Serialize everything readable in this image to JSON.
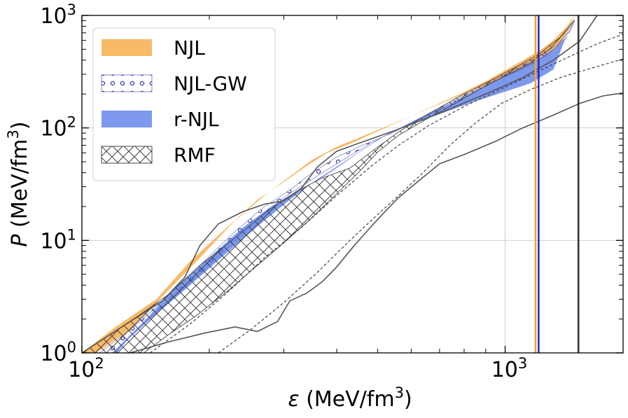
{
  "chart_data": {
    "type": "area",
    "title": "",
    "xlabel": {
      "symbol": "ε",
      "unit": "(MeV/fm",
      "sup": "3",
      "close": ")"
    },
    "ylabel": {
      "symbol": "P",
      "unit": "(MeV/fm",
      "sup": "3",
      "close": ")"
    },
    "xscale": "log",
    "yscale": "log",
    "xlim": [
      100,
      1900
    ],
    "ylim": [
      1,
      1000
    ],
    "grid": true,
    "legend_position": "upper-left",
    "x_ticks": [
      {
        "value": 100,
        "base": "10",
        "exp": "2"
      },
      {
        "value": 1000,
        "base": "10",
        "exp": "3"
      }
    ],
    "y_ticks": [
      {
        "value": 1,
        "base": "10",
        "exp": "0"
      },
      {
        "value": 10,
        "base": "10",
        "exp": "1"
      },
      {
        "value": 100,
        "base": "10",
        "exp": "2"
      },
      {
        "value": 1000,
        "base": "10",
        "exp": "3"
      }
    ],
    "series": [
      {
        "name": "NJL",
        "style": "filled-band",
        "color": "#f5a02c",
        "upper": [
          [
            100,
            1.0
          ],
          [
            120,
            1.7
          ],
          [
            150,
            3.0
          ],
          [
            180,
            6.5
          ],
          [
            220,
            13
          ],
          [
            260,
            23
          ],
          [
            300,
            33
          ],
          [
            340,
            46
          ],
          [
            380,
            60
          ],
          [
            440,
            75
          ],
          [
            520,
            100
          ],
          [
            620,
            135
          ],
          [
            760,
            190
          ],
          [
            900,
            260
          ],
          [
            1050,
            360
          ],
          [
            1200,
            480
          ],
          [
            1300,
            600
          ],
          [
            1400,
            800
          ],
          [
            1460,
            1000
          ]
        ],
        "lower": [
          [
            1460,
            1000
          ],
          [
            1420,
            780
          ],
          [
            1350,
            560
          ],
          [
            1250,
            430
          ],
          [
            1100,
            330
          ],
          [
            950,
            260
          ],
          [
            800,
            200
          ],
          [
            650,
            145
          ],
          [
            540,
            108
          ],
          [
            460,
            84
          ],
          [
            400,
            68
          ],
          [
            350,
            52
          ],
          [
            310,
            37
          ],
          [
            270,
            25
          ],
          [
            230,
            15
          ],
          [
            190,
            7
          ],
          [
            160,
            3.6
          ],
          [
            130,
            1.6
          ],
          [
            108,
            1.0
          ]
        ]
      },
      {
        "name": "NJL-GW",
        "style": "dotted-band",
        "color": "#3a3aa8",
        "upper": [
          [
            110,
            1.0
          ],
          [
            130,
            1.6
          ],
          [
            160,
            3.2
          ],
          [
            190,
            6
          ],
          [
            230,
            12
          ],
          [
            270,
            20
          ],
          [
            310,
            28
          ],
          [
            350,
            40
          ],
          [
            400,
            55
          ],
          [
            460,
            70
          ],
          [
            540,
            90
          ],
          [
            640,
            125
          ],
          [
            760,
            175
          ],
          [
            900,
            240
          ],
          [
            1050,
            330
          ],
          [
            1200,
            430
          ],
          [
            1320,
            540
          ],
          [
            1420,
            720
          ],
          [
            1460,
            900
          ]
        ],
        "lower": [
          [
            1460,
            900
          ],
          [
            1400,
            690
          ],
          [
            1320,
            520
          ],
          [
            1200,
            400
          ],
          [
            1050,
            310
          ],
          [
            900,
            240
          ],
          [
            760,
            170
          ],
          [
            640,
            124
          ],
          [
            540,
            92
          ],
          [
            460,
            66
          ],
          [
            400,
            48
          ],
          [
            350,
            35
          ],
          [
            300,
            24
          ],
          [
            260,
            15
          ],
          [
            220,
            8.5
          ],
          [
            180,
            4.2
          ],
          [
            150,
            2.3
          ],
          [
            130,
            1.4
          ],
          [
            118,
            1.0
          ]
        ]
      },
      {
        "name": "r-NJL",
        "style": "filled-band",
        "color": "#4a72e8",
        "upper": [
          [
            118,
            1.0
          ],
          [
            140,
            1.9
          ],
          [
            165,
            3.7
          ],
          [
            200,
            7
          ],
          [
            240,
            13
          ],
          [
            280,
            20
          ],
          [
            320,
            27
          ],
          [
            360,
            34
          ],
          [
            400,
            44
          ],
          [
            450,
            60
          ],
          [
            520,
            85
          ],
          [
            620,
            120
          ],
          [
            760,
            170
          ],
          [
            900,
            235
          ],
          [
            1050,
            320
          ],
          [
            1200,
            410
          ],
          [
            1320,
            520
          ],
          [
            1420,
            700
          ],
          [
            1460,
            860
          ]
        ],
        "lower": [
          [
            1460,
            860
          ],
          [
            1380,
            590
          ],
          [
            1300,
            330
          ],
          [
            1150,
            250
          ],
          [
            1000,
            210
          ],
          [
            850,
            172
          ],
          [
            720,
            138
          ],
          [
            600,
            108
          ],
          [
            520,
            85
          ],
          [
            460,
            64
          ],
          [
            410,
            48
          ],
          [
            360,
            35
          ],
          [
            310,
            23
          ],
          [
            270,
            15
          ],
          [
            230,
            9
          ],
          [
            195,
            5.2
          ],
          [
            165,
            3.0
          ],
          [
            145,
            2.0
          ],
          [
            128,
            1.3
          ],
          [
            121,
            1.0
          ]
        ]
      },
      {
        "name": "RMF",
        "style": "crosshatch-band",
        "color": "#444444",
        "upper": [
          [
            100,
            1.0
          ],
          [
            115,
            1.4
          ],
          [
            135,
            2.1
          ],
          [
            160,
            3.3
          ],
          [
            190,
            6
          ],
          [
            230,
            10.5
          ],
          [
            270,
            17.5
          ],
          [
            320,
            27
          ],
          [
            370,
            36
          ],
          [
            430,
            44
          ],
          [
            490,
            64
          ],
          [
            560,
            92
          ],
          [
            650,
            130
          ],
          [
            770,
            185
          ],
          [
            900,
            250
          ],
          [
            1050,
            340
          ],
          [
            1200,
            450
          ],
          [
            1350,
            640
          ],
          [
            1460,
            910
          ]
        ],
        "lower": [
          [
            1460,
            910
          ],
          [
            1380,
            700
          ],
          [
            1280,
            510
          ],
          [
            1150,
            380
          ],
          [
            1000,
            290
          ],
          [
            860,
            215
          ],
          [
            740,
            155
          ],
          [
            640,
            115
          ],
          [
            560,
            86
          ],
          [
            500,
            61
          ],
          [
            450,
            40
          ],
          [
            400,
            26
          ],
          [
            350,
            16
          ],
          [
            300,
            9.5
          ],
          [
            260,
            6
          ],
          [
            220,
            3.5
          ],
          [
            185,
            2.1
          ],
          [
            160,
            1.45
          ],
          [
            140,
            1.0
          ]
        ]
      }
    ],
    "reference_lines": [
      {
        "style": "solid",
        "color": "#555555",
        "points": [
          [
            100,
            1.0
          ],
          [
            130,
            1.9
          ],
          [
            155,
            2.9
          ],
          [
            175,
            4.7
          ],
          [
            190,
            9
          ],
          [
            210,
            14
          ],
          [
            240,
            18
          ],
          [
            270,
            21
          ],
          [
            300,
            22.5
          ],
          [
            330,
            29
          ],
          [
            360,
            45
          ],
          [
            400,
            62
          ],
          [
            460,
            75
          ],
          [
            550,
            95
          ],
          [
            700,
            135
          ],
          [
            900,
            200
          ],
          [
            1100,
            280
          ],
          [
            1300,
            400
          ],
          [
            1500,
            590
          ],
          [
            1650,
            1000
          ]
        ]
      },
      {
        "style": "solid",
        "color": "#555555",
        "points": [
          [
            130,
            1.0
          ],
          [
            160,
            1.25
          ],
          [
            195,
            1.5
          ],
          [
            230,
            1.7
          ],
          [
            260,
            1.55
          ],
          [
            290,
            1.9
          ],
          [
            310,
            2.9
          ],
          [
            340,
            3.4
          ],
          [
            370,
            4.3
          ],
          [
            400,
            5.8
          ],
          [
            440,
            9
          ],
          [
            480,
            13
          ],
          [
            520,
            18
          ],
          [
            560,
            24
          ],
          [
            620,
            33
          ],
          [
            700,
            48
          ],
          [
            800,
            58
          ],
          [
            950,
            76
          ],
          [
            1100,
            100
          ],
          [
            1300,
            130
          ],
          [
            1500,
            165
          ],
          [
            1700,
            192
          ],
          [
            1900,
            205
          ]
        ]
      },
      {
        "style": "dashed",
        "color": "#333333",
        "points": [
          [
            145,
            1.0
          ],
          [
            180,
            1.8
          ],
          [
            220,
            3.4
          ],
          [
            270,
            7
          ],
          [
            330,
            13
          ],
          [
            400,
            25
          ],
          [
            480,
            45
          ],
          [
            560,
            70
          ],
          [
            660,
            105
          ],
          [
            800,
            155
          ],
          [
            1000,
            230
          ],
          [
            1200,
            320
          ],
          [
            1400,
            420
          ],
          [
            1650,
            560
          ],
          [
            1900,
            680
          ]
        ]
      },
      {
        "style": "dashed",
        "color": "#333333",
        "points": [
          [
            210,
            1.0
          ],
          [
            250,
            1.6
          ],
          [
            300,
            2.8
          ],
          [
            360,
            5.2
          ],
          [
            430,
            10
          ],
          [
            500,
            17
          ],
          [
            560,
            25
          ],
          [
            640,
            40
          ],
          [
            740,
            70
          ],
          [
            850,
            110
          ],
          [
            980,
            165
          ],
          [
            1150,
            220
          ],
          [
            1350,
            280
          ],
          [
            1600,
            340
          ],
          [
            1900,
            410
          ]
        ]
      }
    ],
    "vertical_lines": [
      {
        "x": 1180,
        "color": "#f5a02c"
      },
      {
        "x": 1200,
        "color": "#2c2cc8"
      },
      {
        "x": 1490,
        "color": "#333333"
      }
    ]
  }
}
